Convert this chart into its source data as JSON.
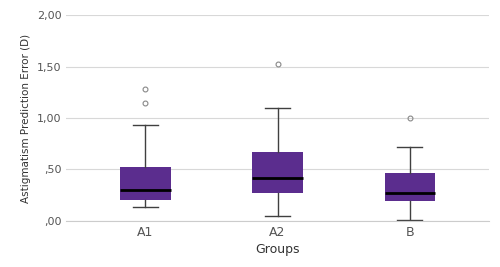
{
  "groups": [
    "A1",
    "A2",
    "B"
  ],
  "xlabel": "Groups",
  "ylabel": "Astigmatism Prediction Error (D)",
  "ylim": [
    0.0,
    2.0
  ],
  "yticks": [
    0.0,
    0.5,
    1.0,
    1.5,
    2.0
  ],
  "yticklabels": [
    ",00",
    ",50",
    "1,00",
    "1,50",
    "2,00"
  ],
  "box_color": "#5B2D8E",
  "median_color": "#000000",
  "whisker_color": "#404040",
  "cap_color": "#404040",
  "flier_color": "#888888",
  "background_color": "#ffffff",
  "grid_color": "#d8d8d8",
  "A1": {
    "q1": 0.2,
    "median": 0.3,
    "q3": 0.52,
    "whislo": 0.13,
    "whishi": 0.93,
    "fliers": [
      1.15,
      1.28
    ]
  },
  "A2": {
    "q1": 0.27,
    "median": 0.42,
    "q3": 0.67,
    "whislo": 0.05,
    "whishi": 1.1,
    "fliers": [
      1.52
    ]
  },
  "B": {
    "q1": 0.19,
    "median": 0.27,
    "q3": 0.47,
    "whislo": 0.01,
    "whishi": 0.72,
    "fliers": [
      1.0
    ]
  }
}
